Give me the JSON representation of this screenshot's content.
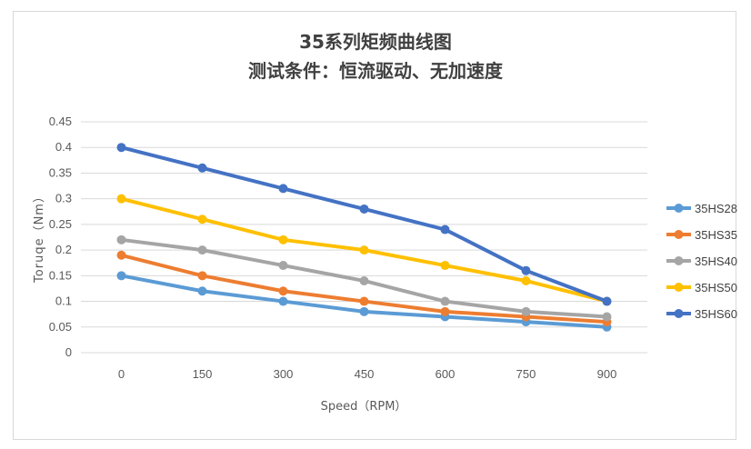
{
  "chart_data": {
    "type": "line",
    "title": "35系列矩频曲线图",
    "subtitle": "测试条件：恒流驱动、无加速度",
    "xlabel": "Speed（RPM）",
    "ylabel": "Toruqe（Nm）",
    "categories": [
      "0",
      "150",
      "300",
      "450",
      "600",
      "750",
      "900"
    ],
    "y_ticks": [
      "0",
      "0.05",
      "0.1",
      "0.15",
      "0.2",
      "0.25",
      "0.3",
      "0.35",
      "0.4",
      "0.45"
    ],
    "ylim": [
      0,
      0.45
    ],
    "grid": true,
    "legend_position": "right",
    "series": [
      {
        "name": "35HS28",
        "color": "#5B9BD5",
        "values": [
          0.15,
          0.12,
          0.1,
          0.08,
          0.07,
          0.06,
          0.05
        ]
      },
      {
        "name": "35HS35",
        "color": "#ED7D31",
        "values": [
          0.19,
          0.15,
          0.12,
          0.1,
          0.08,
          0.07,
          0.06
        ]
      },
      {
        "name": "35HS40",
        "color": "#A5A5A5",
        "values": [
          0.22,
          0.2,
          0.17,
          0.14,
          0.1,
          0.08,
          0.07
        ]
      },
      {
        "name": "35HS50",
        "color": "#FFC000",
        "values": [
          0.3,
          0.26,
          0.22,
          0.2,
          0.17,
          0.14,
          0.1
        ]
      },
      {
        "name": "35HS60",
        "color": "#4472C4",
        "values": [
          0.4,
          0.36,
          0.32,
          0.28,
          0.24,
          0.16,
          0.1
        ]
      }
    ]
  }
}
